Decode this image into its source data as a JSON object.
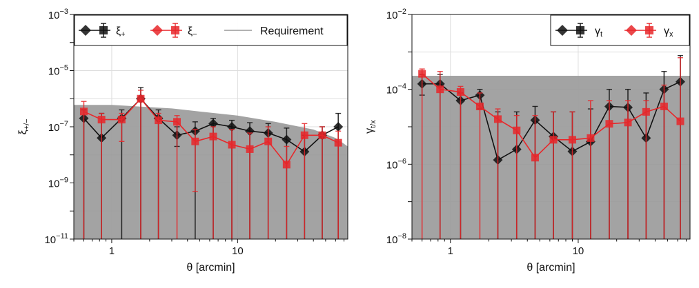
{
  "chart_data": [
    {
      "type": "scatter",
      "panel": "left",
      "xlabel": "θ [arcmin]",
      "ylabel": "ξ+/−",
      "ylabel_main": "ξ",
      "ylabel_sub": "+/−",
      "xscale": "log",
      "yscale": "log",
      "xlim": [
        0.5,
        75
      ],
      "ylim": [
        1e-11,
        0.001
      ],
      "x_tick_labels": [
        {
          "value": 1,
          "label": "1"
        },
        {
          "value": 10,
          "label": "10"
        }
      ],
      "y_tick_labels": [
        {
          "value": 1e-11,
          "base": "10",
          "exp": "−11"
        },
        {
          "value": 1e-09,
          "base": "10",
          "exp": "−9"
        },
        {
          "value": 1e-07,
          "base": "10",
          "exp": "−7"
        },
        {
          "value": 1e-05,
          "base": "10",
          "exp": "−5"
        },
        {
          "value": 0.001,
          "base": "10",
          "exp": "−3"
        }
      ],
      "grid": true,
      "legend_placement": "top",
      "requirement": {
        "name": "Requirement",
        "color": "#999999",
        "x": [
          0.5,
          1,
          2,
          3,
          5,
          10,
          20,
          40,
          60,
          75
        ],
        "y": [
          6e-07,
          6e-07,
          5e-07,
          4.5e-07,
          3.5e-07,
          2.5e-07,
          1.5e-07,
          8e-08,
          4e-08,
          2e-08
        ]
      },
      "series": [
        {
          "name": "ξ+",
          "name_main": "ξ",
          "name_sub": "+",
          "color": "#111111",
          "marker": "diamond",
          "x": [
            0.6,
            0.83,
            1.2,
            1.7,
            2.35,
            3.3,
            4.6,
            6.4,
            9.0,
            12.5,
            17.5,
            24.5,
            34,
            47,
            63
          ],
          "y": [
            2e-07,
            4e-08,
            2e-07,
            1e-06,
            2e-07,
            5e-08,
            7e-08,
            1.3e-07,
            1e-07,
            7e-08,
            6e-08,
            3.5e-08,
            1.3e-08,
            5e-08,
            1e-07
          ],
          "yerr_up": [
            4e-07,
            3e-07,
            4e-07,
            2.5e-06,
            4e-07,
            1e-07,
            1.5e-07,
            2e-07,
            1.7e-07,
            1.4e-07,
            1.3e-07,
            9e-08,
            5e-08,
            1e-07,
            3e-07
          ],
          "yerr_low": [
            1e-11,
            1e-11,
            1e-11,
            1e-11,
            1e-11,
            2e-08,
            1e-11,
            1e-11,
            1e-11,
            1e-11,
            1e-11,
            1e-11,
            1e-11,
            1e-11,
            1e-11
          ]
        },
        {
          "name": "ξ−",
          "name_main": "ξ",
          "name_sub": "−",
          "color": "#e8272a",
          "marker": "square",
          "x": [
            0.6,
            0.83,
            1.2,
            1.7,
            2.35,
            3.3,
            4.6,
            6.4,
            9.0,
            12.5,
            17.5,
            24.5,
            34,
            47,
            63
          ],
          "y": [
            3.5e-07,
            1.8e-07,
            1.8e-07,
            1e-06,
            1.7e-07,
            1.5e-07,
            3e-08,
            4.5e-08,
            2.3e-08,
            1.6e-08,
            3e-08,
            4.5e-09,
            5e-08,
            5e-08,
            2.7e-08
          ],
          "yerr_up": [
            8e-07,
            3e-07,
            3e-07,
            2e-06,
            3e-07,
            2.5e-07,
            8e-08,
            1e-07,
            8e-08,
            6e-08,
            1e-07,
            2e-08,
            1.3e-07,
            1e-07,
            7e-08
          ],
          "yerr_low": [
            1e-11,
            1e-11,
            3e-08,
            1e-11,
            1e-11,
            1e-11,
            5e-10,
            1e-11,
            1e-11,
            1e-11,
            1e-11,
            1e-11,
            1e-11,
            1e-11,
            1e-11
          ]
        }
      ]
    },
    {
      "type": "scatter",
      "panel": "right",
      "xlabel": "θ [arcmin]",
      "ylabel": "γt/x",
      "ylabel_main": "γ",
      "ylabel_sub": "t/x",
      "xscale": "log",
      "yscale": "log",
      "xlim": [
        0.5,
        75
      ],
      "ylim": [
        1e-08,
        0.01
      ],
      "x_tick_labels": [
        {
          "value": 1,
          "label": "1"
        },
        {
          "value": 10,
          "label": "10"
        }
      ],
      "y_tick_labels": [
        {
          "value": 1e-08,
          "base": "10",
          "exp": "−8"
        },
        {
          "value": 1e-06,
          "base": "10",
          "exp": "−6"
        },
        {
          "value": 0.0001,
          "base": "10",
          "exp": "−4"
        },
        {
          "value": 0.01,
          "base": "10",
          "exp": "−2"
        }
      ],
      "grid": true,
      "legend_placement": "top-right",
      "requirement": {
        "color": "#999999",
        "x": [
          0.5,
          75
        ],
        "y": [
          0.00023,
          0.00023
        ]
      },
      "series": [
        {
          "name": "γt",
          "name_main": "γ",
          "name_sub": "t",
          "color": "#111111",
          "marker": "diamond",
          "x": [
            0.6,
            0.83,
            1.2,
            1.7,
            2.35,
            3.3,
            4.6,
            6.4,
            9.0,
            12.5,
            17.5,
            24.5,
            34,
            47,
            63
          ],
          "y": [
            0.00014,
            0.00014,
            5e-05,
            7e-05,
            1.3e-06,
            2.5e-06,
            1.5e-05,
            5.5e-06,
            2.2e-06,
            4e-06,
            3.5e-05,
            3.3e-05,
            5e-06,
            0.0001,
            0.00016
          ],
          "yerr_up": [
            0.00025,
            0.00025,
            8e-05,
            0.0001,
            2.5e-05,
            2.5e-05,
            3.5e-05,
            2.5e-05,
            2.5e-05,
            3e-05,
            0.0001,
            0.0001,
            8e-05,
            0.0003,
            0.0008
          ],
          "yerr_low": [
            7e-05,
            1e-08,
            1e-08,
            3e-05,
            1e-08,
            1e-08,
            1e-08,
            1e-08,
            1e-08,
            1e-08,
            1e-08,
            1e-08,
            1e-08,
            1e-08,
            1e-08
          ]
        },
        {
          "name": "γx",
          "name_main": "γ",
          "name_sub": "x",
          "color": "#e8272a",
          "marker": "square",
          "x": [
            0.6,
            0.83,
            1.2,
            1.7,
            2.35,
            3.3,
            4.6,
            6.4,
            9.0,
            12.5,
            17.5,
            24.5,
            34,
            47,
            63
          ],
          "y": [
            0.00026,
            0.0001,
            8.5e-05,
            3.5e-05,
            1.6e-05,
            8e-06,
            1.5e-06,
            4.5e-06,
            4.5e-06,
            5e-06,
            1.2e-05,
            1.3e-05,
            2.5e-05,
            3.5e-05,
            1.4e-05
          ],
          "yerr_up": [
            0.00035,
            0.0003,
            0.00012,
            8e-05,
            3e-05,
            2e-05,
            2e-05,
            2.5e-05,
            2.5e-05,
            5e-05,
            5e-05,
            5e-05,
            5e-05,
            0.00013,
            0.0007
          ],
          "yerr_low": [
            1e-08,
            1e-08,
            1e-08,
            1e-08,
            1e-08,
            1e-08,
            1e-08,
            1e-08,
            1e-08,
            1e-08,
            1e-08,
            1e-08,
            1e-08,
            1e-08,
            1e-08
          ]
        }
      ]
    }
  ]
}
